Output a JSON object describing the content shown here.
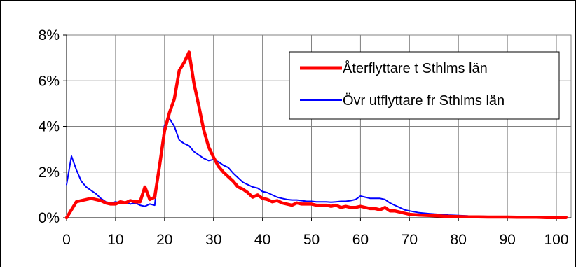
{
  "chart_data": {
    "type": "line",
    "title": "",
    "xlabel": "",
    "ylabel": "",
    "xlim": [
      0,
      103
    ],
    "ylim": [
      0,
      8
    ],
    "xticks": [
      0,
      10,
      20,
      30,
      40,
      50,
      60,
      70,
      80,
      90,
      100
    ],
    "xtick_labels": [
      "0",
      "10",
      "20",
      "30",
      "40",
      "50",
      "60",
      "70",
      "80",
      "90",
      "100"
    ],
    "yticks": [
      0,
      2,
      4,
      6,
      8
    ],
    "ytick_labels": [
      "0%",
      "2%",
      "4%",
      "6%",
      "8%"
    ],
    "grid": true,
    "legend_position": "top-right",
    "series": [
      {
        "name": "Återflyttare t Sthlms län",
        "color": "#ff0000",
        "x": [
          0,
          1,
          2,
          3,
          4,
          5,
          6,
          7,
          8,
          9,
          10,
          11,
          12,
          13,
          14,
          15,
          16,
          17,
          18,
          19,
          20,
          21,
          22,
          23,
          24,
          25,
          26,
          27,
          28,
          29,
          30,
          31,
          32,
          33,
          34,
          35,
          36,
          37,
          38,
          39,
          40,
          41,
          42,
          43,
          44,
          45,
          46,
          47,
          48,
          49,
          50,
          51,
          52,
          53,
          54,
          55,
          56,
          57,
          58,
          59,
          60,
          61,
          62,
          63,
          64,
          65,
          66,
          67,
          68,
          69,
          70,
          72,
          74,
          76,
          78,
          80,
          82,
          84,
          86,
          88,
          90,
          92,
          94,
          96,
          98,
          100,
          102
        ],
        "values": [
          0.0,
          0.35,
          0.7,
          0.75,
          0.8,
          0.85,
          0.8,
          0.75,
          0.65,
          0.6,
          0.6,
          0.7,
          0.65,
          0.75,
          0.7,
          0.7,
          1.35,
          0.8,
          0.9,
          2.3,
          3.8,
          4.6,
          5.2,
          6.45,
          6.8,
          7.25,
          5.9,
          4.9,
          3.85,
          3.1,
          2.65,
          2.25,
          2.0,
          1.8,
          1.6,
          1.35,
          1.25,
          1.1,
          0.9,
          1.0,
          0.85,
          0.8,
          0.7,
          0.75,
          0.65,
          0.6,
          0.55,
          0.65,
          0.6,
          0.6,
          0.6,
          0.55,
          0.55,
          0.55,
          0.5,
          0.55,
          0.45,
          0.5,
          0.45,
          0.45,
          0.5,
          0.45,
          0.4,
          0.4,
          0.35,
          0.45,
          0.3,
          0.3,
          0.25,
          0.2,
          0.15,
          0.12,
          0.1,
          0.08,
          0.06,
          0.05,
          0.04,
          0.04,
          0.03,
          0.03,
          0.03,
          0.02,
          0.02,
          0.02,
          0.01,
          0.01,
          0.01
        ]
      },
      {
        "name": "Övr utflyttare fr Sthlms län",
        "color": "#0000ff",
        "x": [
          0,
          1,
          2,
          3,
          4,
          5,
          6,
          7,
          8,
          9,
          10,
          11,
          12,
          13,
          14,
          15,
          16,
          17,
          18,
          19,
          20,
          21,
          22,
          23,
          24,
          25,
          26,
          27,
          28,
          29,
          30,
          31,
          32,
          33,
          34,
          35,
          36,
          37,
          38,
          39,
          40,
          41,
          42,
          43,
          44,
          45,
          46,
          47,
          48,
          49,
          50,
          51,
          52,
          53,
          54,
          55,
          56,
          57,
          58,
          59,
          60,
          61,
          62,
          63,
          64,
          65,
          66,
          67,
          68,
          69,
          70,
          72,
          74,
          76,
          78,
          80,
          82,
          84,
          86,
          88,
          90,
          92,
          94,
          96,
          98,
          100,
          102
        ],
        "values": [
          1.45,
          2.7,
          2.1,
          1.6,
          1.35,
          1.2,
          1.05,
          0.85,
          0.7,
          0.65,
          0.7,
          0.65,
          0.7,
          0.6,
          0.65,
          0.55,
          0.5,
          0.6,
          0.55,
          2.5,
          4.05,
          4.35,
          4.0,
          3.4,
          3.25,
          3.15,
          2.9,
          2.75,
          2.6,
          2.5,
          2.55,
          2.45,
          2.3,
          2.2,
          1.95,
          1.75,
          1.55,
          1.45,
          1.35,
          1.3,
          1.15,
          1.1,
          1.0,
          0.9,
          0.85,
          0.8,
          0.78,
          0.78,
          0.75,
          0.72,
          0.72,
          0.7,
          0.7,
          0.7,
          0.68,
          0.7,
          0.72,
          0.72,
          0.75,
          0.8,
          0.95,
          0.9,
          0.85,
          0.85,
          0.85,
          0.8,
          0.65,
          0.55,
          0.45,
          0.35,
          0.3,
          0.22,
          0.18,
          0.15,
          0.12,
          0.1,
          0.08,
          0.07,
          0.06,
          0.05,
          0.04,
          0.04,
          0.03,
          0.03,
          0.02,
          0.02,
          0.02
        ]
      }
    ]
  }
}
